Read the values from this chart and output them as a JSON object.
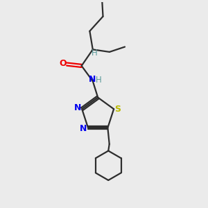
{
  "background_color": "#ebebeb",
  "bond_color": "#2d2d2d",
  "nitrogen_color": "#0000ee",
  "oxygen_color": "#ee0000",
  "sulfur_color": "#bbbb00",
  "hydrogen_color": "#5a9a9a",
  "line_width": 1.6,
  "figsize": [
    3.0,
    3.0
  ],
  "dpi": 100,
  "xlim": [
    0,
    10
  ],
  "ylim": [
    0,
    10
  ]
}
